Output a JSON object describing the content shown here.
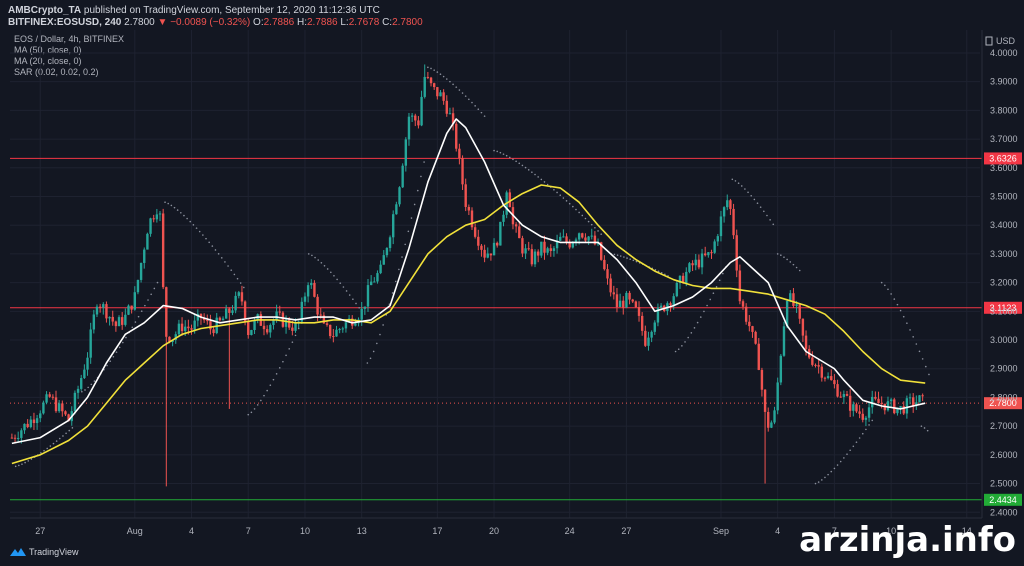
{
  "header": {
    "line1_publisher": "AMBCrypto_TA",
    "line1_rest": " published on TradingView.com, September 12, 2020 11:12:36 UTC",
    "symbol": "BITFINEX:EOSUSD, 240",
    "last": "2.7800",
    "change": "−0.0089 (−0.32%)",
    "o_label": "O:",
    "o_value": "2.7886",
    "h_label": "H:",
    "h_value": "2.7886",
    "l_label": "L:",
    "l_value": "2.7678",
    "c_label": "C:",
    "c_value": "2.7800"
  },
  "indicators": [
    "EOS / Dollar, 4h, BITFINEX",
    "MA (50, close, 0)",
    "MA (20, close, 0)",
    "SAR (0.02, 0.02, 0.2)"
  ],
  "branding": {
    "tradingview": "TradingView",
    "watermark": "arzinja.info"
  },
  "chart_data": {
    "type": "candlestick",
    "currency": "USD",
    "y_ticks": [
      2.4,
      2.5,
      2.6,
      2.7,
      2.8,
      2.9,
      3.0,
      3.1,
      3.2,
      3.3,
      3.4,
      3.5,
      3.6,
      3.7,
      3.8,
      3.9,
      4.0
    ],
    "ylim": [
      2.38,
      4.08
    ],
    "x_ticks": [
      "27",
      "Aug",
      "4",
      "7",
      "10",
      "13",
      "17",
      "20",
      "24",
      "27",
      "Sep",
      "4",
      "7",
      "10",
      "14"
    ],
    "x_tick_days": [
      0,
      5,
      8,
      11,
      14,
      17,
      21,
      24,
      28,
      31,
      36,
      39,
      42,
      45,
      49
    ],
    "xlim_days": [
      -1.6,
      49.7
    ],
    "last_day": 46.8,
    "horizontal_levels": [
      {
        "value": 3.6326,
        "label": "3.6326",
        "color": "#f23645"
      },
      {
        "value": 3.1123,
        "label": "3.1123",
        "color": "#f23645"
      },
      {
        "value": 2.4434,
        "label": "2.4434",
        "color": "#22ab36"
      }
    ],
    "last_price": {
      "value": 2.78,
      "label": "2.7800",
      "color": "#ef5350"
    },
    "close_path": [
      [
        -1.5,
        2.66
      ],
      [
        -0.5,
        2.72
      ],
      [
        0.5,
        2.8
      ],
      [
        1.5,
        2.72
      ],
      [
        2.0,
        2.83
      ],
      [
        2.5,
        2.95
      ],
      [
        3.0,
        3.14
      ],
      [
        3.5,
        3.1
      ],
      [
        4.0,
        3.05
      ],
      [
        4.5,
        3.08
      ],
      [
        5.0,
        3.15
      ],
      [
        5.7,
        3.4
      ],
      [
        6.3,
        3.48
      ],
      [
        6.6,
        3.02
      ],
      [
        7.0,
        3.01
      ],
      [
        7.5,
        3.05
      ],
      [
        8.0,
        3.04
      ],
      [
        8.5,
        3.08
      ],
      [
        9.0,
        3.04
      ],
      [
        9.5,
        3.06
      ],
      [
        10.0,
        3.1
      ],
      [
        10.6,
        3.16
      ],
      [
        11.0,
        3.03
      ],
      [
        11.5,
        3.07
      ],
      [
        12.0,
        3.05
      ],
      [
        12.5,
        3.08
      ],
      [
        13.0,
        3.06
      ],
      [
        13.6,
        3.04
      ],
      [
        14.2,
        3.22
      ],
      [
        14.6,
        3.12
      ],
      [
        15.0,
        3.04
      ],
      [
        15.5,
        3.02
      ],
      [
        16.0,
        3.05
      ],
      [
        16.6,
        3.08
      ],
      [
        17.0,
        3.1
      ],
      [
        17.5,
        3.2
      ],
      [
        18.0,
        3.24
      ],
      [
        18.5,
        3.38
      ],
      [
        19.0,
        3.55
      ],
      [
        19.5,
        3.78
      ],
      [
        20.0,
        3.76
      ],
      [
        20.3,
        3.92
      ],
      [
        20.8,
        3.87
      ],
      [
        21.2,
        3.85
      ],
      [
        21.6,
        3.8
      ],
      [
        22.0,
        3.68
      ],
      [
        22.5,
        3.48
      ],
      [
        23.0,
        3.38
      ],
      [
        23.5,
        3.3
      ],
      [
        24.0,
        3.32
      ],
      [
        24.4,
        3.4
      ],
      [
        24.7,
        3.55
      ],
      [
        25.0,
        3.4
      ],
      [
        25.5,
        3.32
      ],
      [
        26.0,
        3.28
      ],
      [
        26.5,
        3.32
      ],
      [
        27.0,
        3.3
      ],
      [
        27.5,
        3.35
      ],
      [
        28.0,
        3.34
      ],
      [
        28.5,
        3.38
      ],
      [
        29.0,
        3.36
      ],
      [
        29.5,
        3.32
      ],
      [
        30.0,
        3.2
      ],
      [
        30.5,
        3.12
      ],
      [
        31.0,
        3.14
      ],
      [
        31.5,
        3.1
      ],
      [
        32.0,
        3.0
      ],
      [
        32.5,
        3.08
      ],
      [
        33.0,
        3.12
      ],
      [
        33.5,
        3.16
      ],
      [
        34.0,
        3.22
      ],
      [
        34.5,
        3.26
      ],
      [
        35.0,
        3.28
      ],
      [
        35.5,
        3.3
      ],
      [
        36.0,
        3.42
      ],
      [
        36.4,
        3.5
      ],
      [
        36.7,
        3.36
      ],
      [
        37.0,
        3.14
      ],
      [
        37.5,
        3.05
      ],
      [
        38.0,
        2.92
      ],
      [
        38.4,
        2.7
      ],
      [
        38.8,
        2.72
      ],
      [
        39.2,
        2.98
      ],
      [
        39.5,
        3.16
      ],
      [
        40.0,
        3.1
      ],
      [
        40.5,
        2.96
      ],
      [
        41.0,
        2.92
      ],
      [
        41.5,
        2.88
      ],
      [
        42.0,
        2.84
      ],
      [
        42.5,
        2.8
      ],
      [
        43.0,
        2.76
      ],
      [
        43.5,
        2.74
      ],
      [
        44.0,
        2.78
      ],
      [
        44.5,
        2.78
      ],
      [
        45.0,
        2.77
      ],
      [
        45.5,
        2.76
      ],
      [
        46.0,
        2.78
      ],
      [
        46.5,
        2.79
      ],
      [
        46.8,
        2.78
      ]
    ],
    "candle_seed": 7,
    "ma20": [
      [
        -1.5,
        2.64
      ],
      [
        0.0,
        2.66
      ],
      [
        1.5,
        2.72
      ],
      [
        2.5,
        2.8
      ],
      [
        3.5,
        2.92
      ],
      [
        4.5,
        3.02
      ],
      [
        5.5,
        3.06
      ],
      [
        6.5,
        3.12
      ],
      [
        7.5,
        3.11
      ],
      [
        8.5,
        3.08
      ],
      [
        9.5,
        3.06
      ],
      [
        10.5,
        3.07
      ],
      [
        11.5,
        3.08
      ],
      [
        12.5,
        3.08
      ],
      [
        13.5,
        3.07
      ],
      [
        14.5,
        3.08
      ],
      [
        15.5,
        3.08
      ],
      [
        16.5,
        3.06
      ],
      [
        17.5,
        3.07
      ],
      [
        18.5,
        3.12
      ],
      [
        19.5,
        3.32
      ],
      [
        20.5,
        3.55
      ],
      [
        21.5,
        3.72
      ],
      [
        22.0,
        3.77
      ],
      [
        22.5,
        3.74
      ],
      [
        23.5,
        3.62
      ],
      [
        24.5,
        3.47
      ],
      [
        25.5,
        3.4
      ],
      [
        26.5,
        3.36
      ],
      [
        27.5,
        3.34
      ],
      [
        28.5,
        3.34
      ],
      [
        29.5,
        3.34
      ],
      [
        30.5,
        3.28
      ],
      [
        31.5,
        3.2
      ],
      [
        32.5,
        3.1
      ],
      [
        33.5,
        3.12
      ],
      [
        34.5,
        3.15
      ],
      [
        35.5,
        3.2
      ],
      [
        36.5,
        3.27
      ],
      [
        37.0,
        3.29
      ],
      [
        37.5,
        3.26
      ],
      [
        38.5,
        3.2
      ],
      [
        39.5,
        3.05
      ],
      [
        40.5,
        2.96
      ],
      [
        41.5,
        2.92
      ],
      [
        42.0,
        2.9
      ],
      [
        42.5,
        2.86
      ],
      [
        43.5,
        2.79
      ],
      [
        44.5,
        2.77
      ],
      [
        45.5,
        2.76
      ],
      [
        46.8,
        2.78
      ]
    ],
    "ma50": [
      [
        -1.5,
        2.57
      ],
      [
        0.0,
        2.6
      ],
      [
        1.5,
        2.65
      ],
      [
        2.5,
        2.7
      ],
      [
        3.5,
        2.78
      ],
      [
        4.5,
        2.86
      ],
      [
        5.5,
        2.92
      ],
      [
        6.5,
        2.98
      ],
      [
        7.5,
        3.02
      ],
      [
        8.5,
        3.04
      ],
      [
        9.5,
        3.05
      ],
      [
        10.5,
        3.06
      ],
      [
        11.5,
        3.07
      ],
      [
        12.5,
        3.07
      ],
      [
        13.5,
        3.06
      ],
      [
        14.5,
        3.06
      ],
      [
        15.5,
        3.07
      ],
      [
        16.5,
        3.07
      ],
      [
        17.5,
        3.06
      ],
      [
        18.5,
        3.1
      ],
      [
        19.5,
        3.2
      ],
      [
        20.5,
        3.3
      ],
      [
        21.5,
        3.36
      ],
      [
        22.5,
        3.4
      ],
      [
        23.5,
        3.42
      ],
      [
        24.5,
        3.47
      ],
      [
        25.5,
        3.51
      ],
      [
        26.5,
        3.54
      ],
      [
        27.5,
        3.53
      ],
      [
        28.5,
        3.48
      ],
      [
        29.5,
        3.4
      ],
      [
        30.5,
        3.33
      ],
      [
        31.5,
        3.28
      ],
      [
        32.5,
        3.24
      ],
      [
        33.5,
        3.21
      ],
      [
        34.5,
        3.19
      ],
      [
        35.5,
        3.18
      ],
      [
        36.5,
        3.18
      ],
      [
        37.5,
        3.17
      ],
      [
        38.5,
        3.16
      ],
      [
        39.5,
        3.14
      ],
      [
        40.5,
        3.12
      ],
      [
        41.5,
        3.09
      ],
      [
        42.5,
        3.03
      ],
      [
        43.5,
        2.96
      ],
      [
        44.5,
        2.9
      ],
      [
        45.5,
        2.86
      ],
      [
        46.8,
        2.85
      ]
    ],
    "sar_segments": [
      {
        "from": -1.3,
        "to": 1.8,
        "start": 2.56,
        "end": 2.7
      },
      {
        "from": 2.2,
        "to": 6.2,
        "start": 2.82,
        "end": 3.2
      },
      {
        "from": 6.6,
        "to": 10.8,
        "start": 3.48,
        "end": 3.18
      },
      {
        "from": 11.0,
        "to": 13.8,
        "start": 2.74,
        "end": 3.06
      },
      {
        "from": 14.2,
        "to": 17.0,
        "start": 3.3,
        "end": 3.1
      },
      {
        "from": 17.3,
        "to": 20.3,
        "start": 2.92,
        "end": 3.62
      },
      {
        "from": 20.5,
        "to": 23.5,
        "start": 3.95,
        "end": 3.78
      },
      {
        "from": 24.0,
        "to": 29.8,
        "start": 3.66,
        "end": 3.36
      },
      {
        "from": 30.2,
        "to": 33.3,
        "start": 3.3,
        "end": 3.22
      },
      {
        "from": 33.6,
        "to": 36.3,
        "start": 2.96,
        "end": 3.26
      },
      {
        "from": 36.6,
        "to": 38.8,
        "start": 3.56,
        "end": 3.4
      },
      {
        "from": 39.0,
        "to": 40.2,
        "start": 3.3,
        "end": 3.24
      },
      {
        "from": 41.0,
        "to": 44.0,
        "start": 2.5,
        "end": 2.72
      },
      {
        "from": 44.5,
        "to": 47.0,
        "start": 3.2,
        "end": 2.88
      },
      {
        "from": 46.6,
        "to": 47.0,
        "start": 2.7,
        "end": 2.68
      }
    ],
    "colors": {
      "up": "#26a69a",
      "down": "#ef5350",
      "ma20": "#ffffff",
      "ma50": "#f1e13a",
      "sar": "#8a8f9c",
      "grid": "#1e2230",
      "axis_text": "#b2b5be"
    }
  }
}
